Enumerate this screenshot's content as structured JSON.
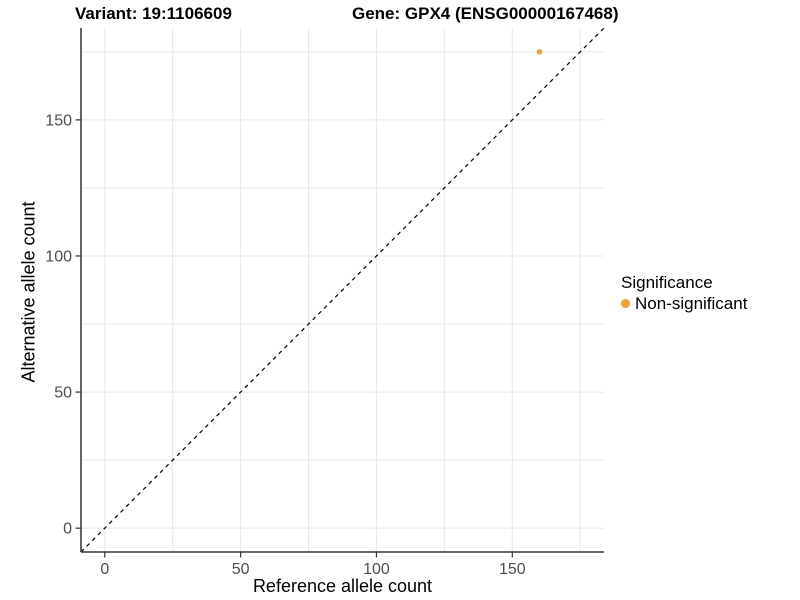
{
  "header": {
    "variant_title": "Variant: 19:1106609",
    "gene_title": "Gene: GPX4 (ENSG00000167468)"
  },
  "axes": {
    "x": {
      "label": "Reference allele count",
      "major_ticks": [
        0,
        50,
        100,
        150
      ],
      "minor_step": 25,
      "range": [
        -8.75,
        183.75
      ]
    },
    "y": {
      "label": "Alternative allele count",
      "major_ticks": [
        0,
        50,
        100,
        150
      ],
      "minor_step": 25,
      "range": [
        -8.75,
        183.75
      ]
    }
  },
  "legend": {
    "title": "Significance",
    "items": [
      {
        "label": "Non-significant",
        "color": "#FA9E2B",
        "marker": "circle-icon"
      }
    ]
  },
  "colors": {
    "background": "#FFFFFF",
    "axis_line": "#333333",
    "tick_mark": "#333333",
    "tick_label": "#4D4D4D",
    "grid": "#E8E8E8",
    "identity_line": "#000000",
    "point": "#FA9E2B"
  },
  "chart_data": {
    "type": "scatter",
    "title": "Variant: 19:1106609 | Gene: GPX4 (ENSG00000167468)",
    "xlabel": "Reference allele count",
    "ylabel": "Alternative allele count",
    "xlim": [
      -8.75,
      183.75
    ],
    "ylim": [
      -8.75,
      183.75
    ],
    "x_ticks": [
      0,
      50,
      100,
      150
    ],
    "y_ticks": [
      0,
      50,
      100,
      150
    ],
    "grid": "on",
    "grid_step": 25,
    "legend_position": "right",
    "series": [
      {
        "name": "Non-significant",
        "color": "#FA9E2B",
        "marker": "circle",
        "points": [
          {
            "x": 160,
            "y": 175
          }
        ]
      }
    ],
    "reference_line": {
      "type": "identity y=x",
      "style": "dashed",
      "color": "#000000"
    }
  }
}
